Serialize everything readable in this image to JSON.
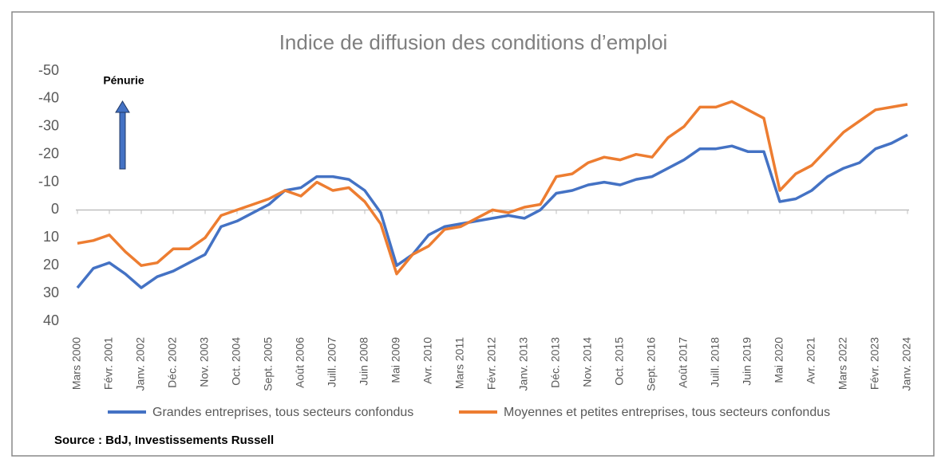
{
  "chart_data": {
    "type": "line",
    "title": "Indice de diffusion des conditions d’emploi",
    "annotation": "Pénurie",
    "source": "Source : BdJ, Investissements Russell",
    "categories": [
      "Mars 2000",
      null,
      "Févr. 2001",
      null,
      "Janv. 2002",
      null,
      "Déc. 2002",
      null,
      "Nov. 2003",
      null,
      "Oct. 2004",
      null,
      "Sept. 2005",
      null,
      "Août 2006",
      null,
      "Juill. 2007",
      null,
      "Juin 2008",
      null,
      "Mai 2009",
      null,
      "Avr. 2010",
      null,
      "Mars 2011",
      null,
      "Févr. 2012",
      null,
      "Janv. 2013",
      null,
      "Déc. 2013",
      null,
      "Nov. 2014",
      null,
      "Oct. 2015",
      null,
      "Sept. 2016",
      null,
      "Août 2017",
      null,
      "Juill. 2018",
      null,
      "Juin 2019",
      null,
      "Mai 2020",
      null,
      "Avr. 2021",
      null,
      "Mars 2022",
      null,
      "Févr. 2023",
      null,
      "Janv. 2024"
    ],
    "series": [
      {
        "name": "Grandes entreprises, tous secteurs confondus",
        "color": "#4472c4",
        "values": [
          28,
          21,
          19,
          23,
          28,
          24,
          22,
          19,
          16,
          6,
          4,
          1,
          -2,
          -7,
          -8,
          -12,
          -12,
          -11,
          -7,
          1,
          20,
          16,
          9,
          6,
          5,
          4,
          3,
          2,
          3,
          0,
          -6,
          -7,
          -9,
          -10,
          -9,
          -11,
          -12,
          -15,
          -18,
          -22,
          -22,
          -23,
          -21,
          -21,
          -3,
          -4,
          -7,
          -12,
          -15,
          -17,
          -22,
          -24,
          -27
        ]
      },
      {
        "name": "Moyennes et petites entreprises, tous secteurs confondus",
        "color": "#ed7d31",
        "values": [
          12,
          11,
          9,
          15,
          20,
          19,
          14,
          14,
          10,
          2,
          0,
          -2,
          -4,
          -7,
          -5,
          -10,
          -7,
          -8,
          -3,
          5,
          23,
          16,
          13,
          7,
          6,
          3,
          0,
          1,
          -1,
          -2,
          -12,
          -13,
          -17,
          -19,
          -18,
          -20,
          -19,
          -26,
          -30,
          -37,
          -37,
          -39,
          -36,
          -33,
          -7,
          -13,
          -16,
          -22,
          -28,
          -32,
          -36,
          -37,
          -38
        ]
      }
    ],
    "ylim": [
      40,
      -50
    ],
    "yticks": [
      -50,
      -40,
      -30,
      -20,
      -10,
      0,
      10,
      20,
      30,
      40
    ],
    "grid": false,
    "legend": "bottom"
  }
}
